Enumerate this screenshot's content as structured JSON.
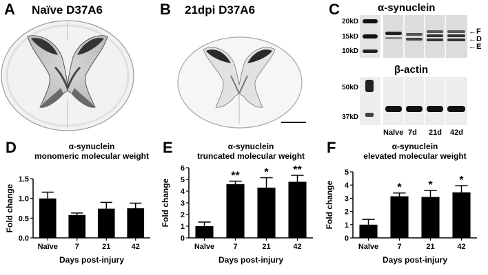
{
  "panels": {
    "A": {
      "letter": "A",
      "title": "Naïve D37A6"
    },
    "B": {
      "letter": "B",
      "title": "21dpi D37A6"
    },
    "C": {
      "letter": "C",
      "blot1_title": "α-synuclein",
      "blot2_title": "β-actin",
      "mw1": [
        "20kD",
        "15kD",
        "10kD"
      ],
      "mw2": [
        "50kD",
        "37kD"
      ],
      "band_labels": [
        "F",
        "D",
        "E"
      ],
      "lanes": [
        "Naïve",
        "7d",
        "21d",
        "42d"
      ]
    }
  },
  "chart_data": [
    {
      "letter": "D",
      "type": "bar",
      "title": "α-synuclein",
      "subtitle": "monomeric molecular weight",
      "xlabel": "Days post-injury",
      "ylabel": "Fold change",
      "categories": [
        "Naïve",
        "7",
        "21",
        "42"
      ],
      "values": [
        1.0,
        0.58,
        0.74,
        0.75
      ],
      "errors": [
        0.16,
        0.05,
        0.16,
        0.13
      ],
      "significance": [
        "",
        "",
        "",
        ""
      ],
      "ylim": [
        0,
        1.5
      ],
      "yticks": [
        "0.0",
        "0.5",
        "1.0",
        "1.5"
      ]
    },
    {
      "letter": "E",
      "type": "bar",
      "title": "α-synuclein",
      "subtitle": "truncated molecular weight",
      "xlabel": "Days post-injury",
      "ylabel": "Fold change",
      "categories": [
        "Naïve",
        "7",
        "21",
        "42"
      ],
      "values": [
        1.0,
        4.6,
        4.3,
        4.8
      ],
      "errors": [
        0.35,
        0.25,
        0.85,
        0.55
      ],
      "significance": [
        "",
        "**",
        "*",
        "**"
      ],
      "ylim": [
        0,
        6
      ],
      "yticks": [
        "0",
        "1",
        "2",
        "3",
        "4",
        "5",
        "6"
      ]
    },
    {
      "letter": "F",
      "type": "bar",
      "title": "α-synuclein",
      "subtitle": "elevated molecular weight",
      "xlabel": "Days post-injury",
      "ylabel": "Fold change",
      "categories": [
        "Naïve",
        "7",
        "21",
        "42"
      ],
      "values": [
        1.0,
        3.15,
        3.1,
        3.45
      ],
      "errors": [
        0.4,
        0.25,
        0.5,
        0.5
      ],
      "significance": [
        "",
        "*",
        "*",
        "*"
      ],
      "ylim": [
        0,
        5
      ],
      "yticks": [
        "0",
        "1",
        "2",
        "3",
        "4",
        "5"
      ]
    }
  ]
}
